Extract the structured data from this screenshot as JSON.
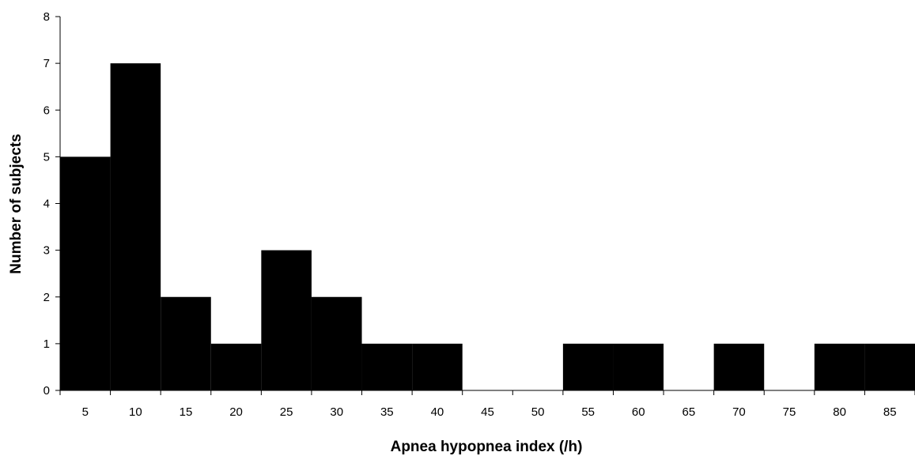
{
  "chart_data": {
    "type": "bar",
    "title": "",
    "xlabel": "Apnea hypopnea index (/h)",
    "ylabel": "Number of subjects",
    "categories": [
      "5",
      "10",
      "15",
      "20",
      "25",
      "30",
      "35",
      "40",
      "45",
      "50",
      "55",
      "60",
      "65",
      "70",
      "75",
      "80",
      "85"
    ],
    "values": [
      5,
      7,
      2,
      1,
      3,
      2,
      1,
      1,
      0,
      0,
      1,
      1,
      0,
      1,
      0,
      1,
      1
    ],
    "ylim": [
      0,
      8
    ],
    "yticks": [
      "0",
      "1",
      "2",
      "3",
      "4",
      "5",
      "6",
      "7",
      "8"
    ],
    "grid": false,
    "legend": "none",
    "bar_color": "#000000"
  }
}
